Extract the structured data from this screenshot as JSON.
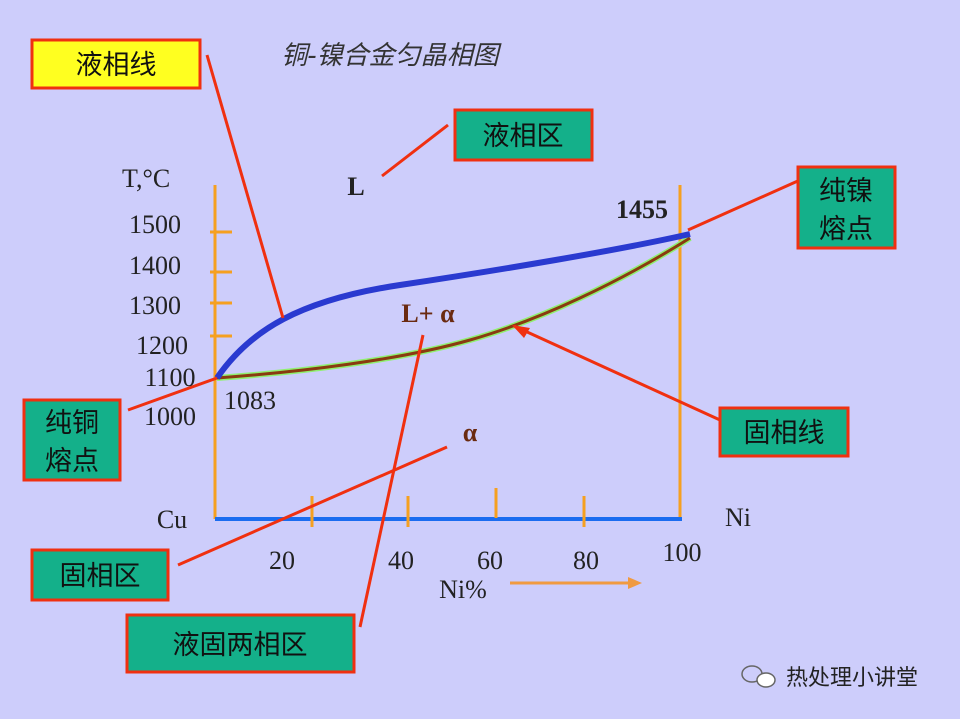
{
  "title": "铜-镍合金匀晶相图",
  "callouts": {
    "liquidus": "液相线",
    "liquid_region": "液相区",
    "ni_melting_point": [
      "纯镍",
      "熔点"
    ],
    "solidus": "固相线",
    "cu_melting_point": [
      "纯铜",
      "熔点"
    ],
    "solid_region": "固相区",
    "two_phase_region": "液固两相区"
  },
  "y_axis": {
    "label": "T,°C",
    "ticks": [
      "1500",
      "1400",
      "1300",
      "1200",
      "1100",
      "1000"
    ]
  },
  "x_axis": {
    "left_end": "Cu",
    "right_end": "Ni",
    "ticks": [
      "20",
      "40",
      "60",
      "80",
      "100"
    ],
    "label": "Ni%"
  },
  "points": {
    "cu": "1083",
    "ni": "1455"
  },
  "regions": {
    "liquid": "L",
    "two_phase": "L+ α",
    "solid": "α"
  },
  "watermark": "热处理小讲堂"
}
